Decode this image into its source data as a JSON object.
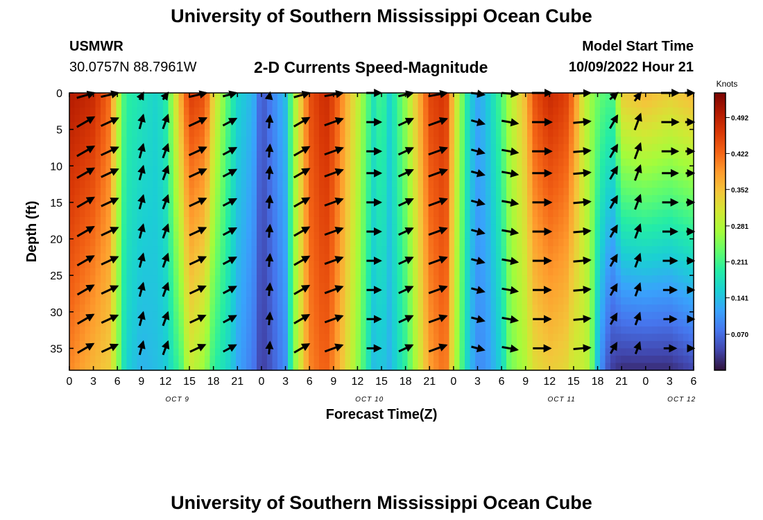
{
  "page": {
    "title_top": "University of Southern Mississippi Ocean Cube",
    "title_bottom": "University of Southern Mississippi Ocean Cube",
    "station_id": "USMWR",
    "coordinates": "30.0757N  88.7961W",
    "plot_title": "2-D Currents Speed-Magnitude",
    "model_start_label": "Model Start Time",
    "model_start_value": "10/09/2022 Hour 21"
  },
  "chart_data": {
    "type": "heatmap",
    "title": "2-D Currents Speed-Magnitude",
    "xlabel": "Forecast Time(Z)",
    "ylabel": "Depth (ft)",
    "x_ticks": [
      "0",
      "3",
      "6",
      "9",
      "12",
      "15",
      "18",
      "21",
      "0",
      "3",
      "6",
      "9",
      "12",
      "15",
      "18",
      "21",
      "0",
      "3",
      "6",
      "9",
      "12",
      "15",
      "18",
      "21",
      "0",
      "3",
      "6"
    ],
    "day_labels": [
      {
        "label": "OCT 9",
        "tick_index": 4.5
      },
      {
        "label": "OCT 10",
        "tick_index": 12.5
      },
      {
        "label": "OCT 11",
        "tick_index": 20.5
      },
      {
        "label": "OCT 12",
        "tick_index": 25.5
      }
    ],
    "y_ticks": [
      0,
      5,
      10,
      15,
      20,
      25,
      30,
      35
    ],
    "ylim": [
      0,
      38
    ],
    "xlim_hours": [
      0,
      78
    ],
    "colorbar": {
      "units": "Knots",
      "tick_labels": [
        "0.492",
        "0.422",
        "0.352",
        "0.281",
        "0.211",
        "0.141",
        "0.070"
      ],
      "tick_values": [
        0.492,
        0.422,
        0.352,
        0.281,
        0.211,
        0.141,
        0.07
      ],
      "vmin": 0.0,
      "vmax": 0.54,
      "colors": [
        "#30123b",
        "#4145ab",
        "#4675ed",
        "#39a2fc",
        "#1bcfd4",
        "#24eca6",
        "#61fc6c",
        "#a4fc3b",
        "#d1e834",
        "#f3c63a",
        "#fe9b2d",
        "#f36315",
        "#d93806",
        "#b11901",
        "#7a0402"
      ]
    },
    "speed_profile": {
      "hours": [
        0,
        3,
        5,
        6,
        7,
        9,
        11,
        12,
        14,
        15,
        17,
        18,
        20,
        21,
        23,
        24,
        25,
        27,
        28,
        30,
        32,
        33,
        36,
        38,
        39,
        40,
        42,
        45,
        47,
        48,
        50,
        51,
        52,
        54,
        55,
        57,
        58,
        60,
        62,
        63,
        64,
        65,
        66,
        67,
        68,
        69,
        72,
        75,
        78
      ],
      "surface_knots": [
        0.5,
        0.48,
        0.42,
        0.3,
        0.2,
        0.18,
        0.16,
        0.19,
        0.38,
        0.46,
        0.44,
        0.33,
        0.21,
        0.16,
        0.13,
        0.05,
        0.08,
        0.14,
        0.26,
        0.44,
        0.48,
        0.45,
        0.3,
        0.18,
        0.22,
        0.16,
        0.26,
        0.45,
        0.47,
        0.34,
        0.16,
        0.12,
        0.14,
        0.22,
        0.28,
        0.36,
        0.44,
        0.48,
        0.46,
        0.41,
        0.32,
        0.27,
        0.24,
        0.22,
        0.22,
        0.34,
        0.36,
        0.34,
        0.36
      ],
      "bottom_knots": [
        0.4,
        0.36,
        0.34,
        0.26,
        0.16,
        0.13,
        0.14,
        0.15,
        0.22,
        0.3,
        0.26,
        0.2,
        0.16,
        0.12,
        0.08,
        0.03,
        0.05,
        0.1,
        0.24,
        0.4,
        0.43,
        0.4,
        0.26,
        0.14,
        0.15,
        0.13,
        0.2,
        0.38,
        0.42,
        0.3,
        0.14,
        0.1,
        0.1,
        0.16,
        0.24,
        0.28,
        0.32,
        0.34,
        0.33,
        0.3,
        0.3,
        0.28,
        0.14,
        0.06,
        0.03,
        0.02,
        0.02,
        0.02,
        0.04
      ]
    },
    "vectors": {
      "hours": [
        2,
        5,
        9,
        12,
        16,
        20,
        25,
        29,
        33,
        38,
        42,
        46,
        51,
        55,
        59,
        64,
        68,
        71,
        75,
        78
      ],
      "depths_ft": [
        0,
        4,
        8,
        11,
        15,
        19,
        23,
        27,
        31,
        35
      ],
      "direction_deg_by_column": [
        120,
        115,
        165,
        160,
        115,
        118,
        175,
        120,
        110,
        90,
        115,
        110,
        75,
        80,
        90,
        95,
        150,
        160,
        90,
        90
      ],
      "magnitude_note": "arrow length proportional to speed"
    }
  }
}
